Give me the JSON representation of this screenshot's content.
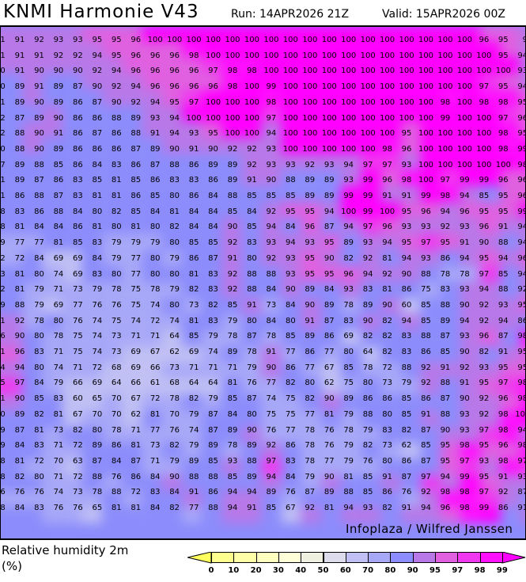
{
  "header": {
    "title": "KNMI Harmonie V43",
    "run": "Run: 14APR2026 21Z",
    "valid": "Valid: 15APR2026 00Z"
  },
  "map": {
    "watermark": "Infoplaza / Wilfred Janssen",
    "grid": [
      [
        "1",
        "91",
        "92",
        "93",
        "93",
        "95",
        "95",
        "96",
        "100",
        "100",
        "100",
        "100",
        "100",
        "100",
        "100",
        "100",
        "100",
        "100",
        "100",
        "100",
        "100",
        "100",
        "100",
        "100",
        "100",
        "96",
        "95",
        "9"
      ],
      [
        "1",
        "91",
        "91",
        "92",
        "92",
        "94",
        "95",
        "96",
        "96",
        "96",
        "98",
        "100",
        "100",
        "100",
        "100",
        "100",
        "100",
        "100",
        "100",
        "100",
        "100",
        "100",
        "100",
        "100",
        "100",
        "100",
        "95",
        "94"
      ],
      [
        "0",
        "91",
        "90",
        "90",
        "90",
        "92",
        "94",
        "96",
        "96",
        "96",
        "96",
        "97",
        "98",
        "98",
        "100",
        "100",
        "100",
        "100",
        "100",
        "100",
        "100",
        "100",
        "100",
        "100",
        "100",
        "100",
        "100",
        "93"
      ],
      [
        "0",
        "89",
        "91",
        "89",
        "87",
        "90",
        "92",
        "94",
        "96",
        "96",
        "96",
        "96",
        "98",
        "100",
        "99",
        "100",
        "100",
        "100",
        "100",
        "100",
        "100",
        "100",
        "100",
        "100",
        "100",
        "97",
        "95",
        "94"
      ],
      [
        "1",
        "89",
        "90",
        "89",
        "86",
        "87",
        "90",
        "92",
        "94",
        "95",
        "97",
        "100",
        "100",
        "100",
        "98",
        "100",
        "100",
        "100",
        "100",
        "100",
        "100",
        "100",
        "100",
        "98",
        "100",
        "98",
        "98",
        "95"
      ],
      [
        "2",
        "87",
        "89",
        "90",
        "86",
        "86",
        "88",
        "89",
        "93",
        "94",
        "100",
        "100",
        "100",
        "100",
        "97",
        "100",
        "100",
        "100",
        "100",
        "100",
        "100",
        "100",
        "100",
        "99",
        "100",
        "100",
        "97",
        "96"
      ],
      [
        "2",
        "88",
        "90",
        "91",
        "86",
        "87",
        "86",
        "88",
        "91",
        "94",
        "93",
        "95",
        "100",
        "100",
        "94",
        "100",
        "100",
        "100",
        "100",
        "100",
        "100",
        "95",
        "100",
        "100",
        "100",
        "100",
        "98",
        "95"
      ],
      [
        "0",
        "88",
        "90",
        "89",
        "86",
        "86",
        "86",
        "87",
        "89",
        "90",
        "91",
        "90",
        "92",
        "92",
        "93",
        "100",
        "100",
        "100",
        "100",
        "100",
        "98",
        "96",
        "100",
        "100",
        "100",
        "100",
        "98",
        "99"
      ],
      [
        "7",
        "89",
        "88",
        "85",
        "86",
        "84",
        "83",
        "86",
        "87",
        "88",
        "86",
        "89",
        "89",
        "92",
        "93",
        "93",
        "92",
        "93",
        "94",
        "97",
        "97",
        "93",
        "100",
        "100",
        "100",
        "100",
        "100",
        "98"
      ],
      [
        "1",
        "89",
        "87",
        "86",
        "83",
        "85",
        "81",
        "85",
        "86",
        "83",
        "83",
        "86",
        "89",
        "91",
        "90",
        "88",
        "89",
        "89",
        "93",
        "99",
        "96",
        "98",
        "100",
        "97",
        "99",
        "99",
        "96",
        "96"
      ],
      [
        "1",
        "86",
        "88",
        "87",
        "83",
        "81",
        "81",
        "86",
        "85",
        "80",
        "86",
        "84",
        "88",
        "85",
        "85",
        "85",
        "89",
        "89",
        "99",
        "99",
        "91",
        "91",
        "99",
        "98",
        "94",
        "85",
        "95",
        "96"
      ],
      [
        "8",
        "83",
        "86",
        "88",
        "84",
        "80",
        "82",
        "85",
        "84",
        "81",
        "84",
        "84",
        "85",
        "84",
        "92",
        "95",
        "95",
        "94",
        "100",
        "99",
        "100",
        "95",
        "96",
        "94",
        "96",
        "95",
        "95",
        "99"
      ],
      [
        "8",
        "81",
        "84",
        "84",
        "86",
        "81",
        "80",
        "81",
        "80",
        "82",
        "84",
        "84",
        "90",
        "85",
        "94",
        "84",
        "96",
        "87",
        "94",
        "97",
        "96",
        "93",
        "93",
        "92",
        "93",
        "96",
        "91",
        "94"
      ],
      [
        "9",
        "77",
        "77",
        "81",
        "85",
        "83",
        "79",
        "79",
        "79",
        "80",
        "85",
        "85",
        "92",
        "83",
        "93",
        "94",
        "93",
        "95",
        "89",
        "93",
        "94",
        "95",
        "97",
        "95",
        "91",
        "90",
        "88",
        "94"
      ],
      [
        "2",
        "72",
        "84",
        "69",
        "69",
        "84",
        "79",
        "77",
        "80",
        "79",
        "86",
        "87",
        "91",
        "80",
        "92",
        "93",
        "95",
        "90",
        "82",
        "92",
        "81",
        "94",
        "93",
        "86",
        "94",
        "95",
        "94",
        "96"
      ],
      [
        "3",
        "81",
        "80",
        "74",
        "69",
        "83",
        "80",
        "77",
        "80",
        "80",
        "81",
        "83",
        "92",
        "88",
        "88",
        "93",
        "95",
        "95",
        "96",
        "94",
        "92",
        "90",
        "88",
        "78",
        "78",
        "97",
        "85",
        "94"
      ],
      [
        "2",
        "81",
        "79",
        "71",
        "73",
        "79",
        "78",
        "75",
        "78",
        "79",
        "82",
        "83",
        "92",
        "88",
        "84",
        "90",
        "89",
        "84",
        "93",
        "83",
        "81",
        "86",
        "75",
        "83",
        "93",
        "94",
        "88",
        "92"
      ],
      [
        "9",
        "88",
        "79",
        "69",
        "77",
        "76",
        "76",
        "75",
        "74",
        "80",
        "73",
        "82",
        "85",
        "91",
        "73",
        "84",
        "90",
        "89",
        "78",
        "89",
        "90",
        "60",
        "85",
        "88",
        "90",
        "92",
        "93",
        "95"
      ],
      [
        "1",
        "92",
        "78",
        "80",
        "76",
        "74",
        "75",
        "74",
        "72",
        "74",
        "81",
        "83",
        "79",
        "80",
        "84",
        "80",
        "91",
        "87",
        "83",
        "90",
        "82",
        "94",
        "85",
        "89",
        "94",
        "92",
        "94",
        "86"
      ],
      [
        "6",
        "90",
        "80",
        "78",
        "75",
        "74",
        "73",
        "71",
        "71",
        "64",
        "85",
        "79",
        "78",
        "87",
        "78",
        "85",
        "89",
        "86",
        "69",
        "82",
        "82",
        "83",
        "88",
        "87",
        "93",
        "96",
        "87",
        "98"
      ],
      [
        "1",
        "96",
        "83",
        "71",
        "75",
        "74",
        "73",
        "69",
        "67",
        "62",
        "69",
        "74",
        "89",
        "78",
        "91",
        "77",
        "86",
        "77",
        "80",
        "64",
        "82",
        "83",
        "86",
        "85",
        "90",
        "82",
        "91",
        "95"
      ],
      [
        "4",
        "94",
        "80",
        "74",
        "71",
        "72",
        "68",
        "69",
        "66",
        "73",
        "71",
        "71",
        "71",
        "79",
        "90",
        "86",
        "77",
        "67",
        "85",
        "78",
        "72",
        "88",
        "92",
        "91",
        "92",
        "93",
        "95",
        "95"
      ],
      [
        "5",
        "97",
        "84",
        "79",
        "66",
        "69",
        "64",
        "66",
        "61",
        "68",
        "64",
        "64",
        "81",
        "76",
        "77",
        "82",
        "80",
        "62",
        "75",
        "80",
        "73",
        "79",
        "92",
        "88",
        "91",
        "95",
        "97",
        "98"
      ],
      [
        "1",
        "90",
        "85",
        "83",
        "60",
        "65",
        "70",
        "67",
        "72",
        "78",
        "82",
        "79",
        "85",
        "87",
        "74",
        "75",
        "82",
        "90",
        "89",
        "86",
        "86",
        "85",
        "86",
        "87",
        "90",
        "92",
        "96",
        "98"
      ],
      [
        "0",
        "89",
        "82",
        "81",
        "67",
        "70",
        "70",
        "62",
        "81",
        "70",
        "79",
        "87",
        "84",
        "80",
        "75",
        "75",
        "77",
        "81",
        "79",
        "88",
        "80",
        "85",
        "91",
        "88",
        "93",
        "92",
        "98",
        "100"
      ],
      [
        "9",
        "87",
        "81",
        "73",
        "82",
        "80",
        "78",
        "71",
        "77",
        "76",
        "74",
        "87",
        "89",
        "90",
        "76",
        "77",
        "78",
        "76",
        "78",
        "79",
        "83",
        "82",
        "87",
        "90",
        "93",
        "97",
        "98",
        "94"
      ],
      [
        "9",
        "84",
        "83",
        "71",
        "72",
        "89",
        "86",
        "81",
        "73",
        "82",
        "79",
        "89",
        "78",
        "89",
        "92",
        "86",
        "78",
        "76",
        "79",
        "82",
        "73",
        "62",
        "85",
        "95",
        "98",
        "95",
        "96",
        "98"
      ],
      [
        "8",
        "81",
        "72",
        "70",
        "63",
        "87",
        "84",
        "87",
        "71",
        "79",
        "89",
        "85",
        "93",
        "88",
        "97",
        "83",
        "78",
        "77",
        "79",
        "76",
        "80",
        "86",
        "87",
        "95",
        "97",
        "93",
        "98",
        "97"
      ],
      [
        "8",
        "82",
        "80",
        "71",
        "72",
        "88",
        "76",
        "86",
        "84",
        "90",
        "88",
        "88",
        "85",
        "89",
        "94",
        "84",
        "79",
        "90",
        "81",
        "85",
        "91",
        "87",
        "97",
        "94",
        "99",
        "95",
        "91",
        "93"
      ],
      [
        "6",
        "76",
        "76",
        "74",
        "73",
        "78",
        "88",
        "72",
        "83",
        "84",
        "91",
        "86",
        "94",
        "94",
        "89",
        "76",
        "87",
        "89",
        "88",
        "85",
        "86",
        "76",
        "92",
        "98",
        "98",
        "97",
        "92",
        "87"
      ],
      [
        "8",
        "84",
        "83",
        "76",
        "76",
        "65",
        "81",
        "81",
        "84",
        "82",
        "77",
        "88",
        "94",
        "91",
        "85",
        "67",
        "92",
        "81",
        "94",
        "93",
        "82",
        "91",
        "94",
        "96",
        "98",
        "99",
        "86",
        "91"
      ]
    ]
  },
  "legend": {
    "title": "Relative humidity 2m",
    "unit": "(%)",
    "labels": [
      "0",
      "10",
      "20",
      "30",
      "40",
      "50",
      "60",
      "70",
      "80",
      "90",
      "95",
      "97",
      "98",
      "99"
    ],
    "colors": [
      "#ffff90",
      "#ffffa8",
      "#ffffc0",
      "#ffffd8",
      "#f0f0e0",
      "#dcdcec",
      "#c0c0f4",
      "#a8a8f8",
      "#8c8cfc",
      "#b878e8",
      "#e060e0",
      "#f038f0",
      "#ff10ff"
    ],
    "under_color": "#ffff60",
    "over_color": "#ff00ff"
  }
}
